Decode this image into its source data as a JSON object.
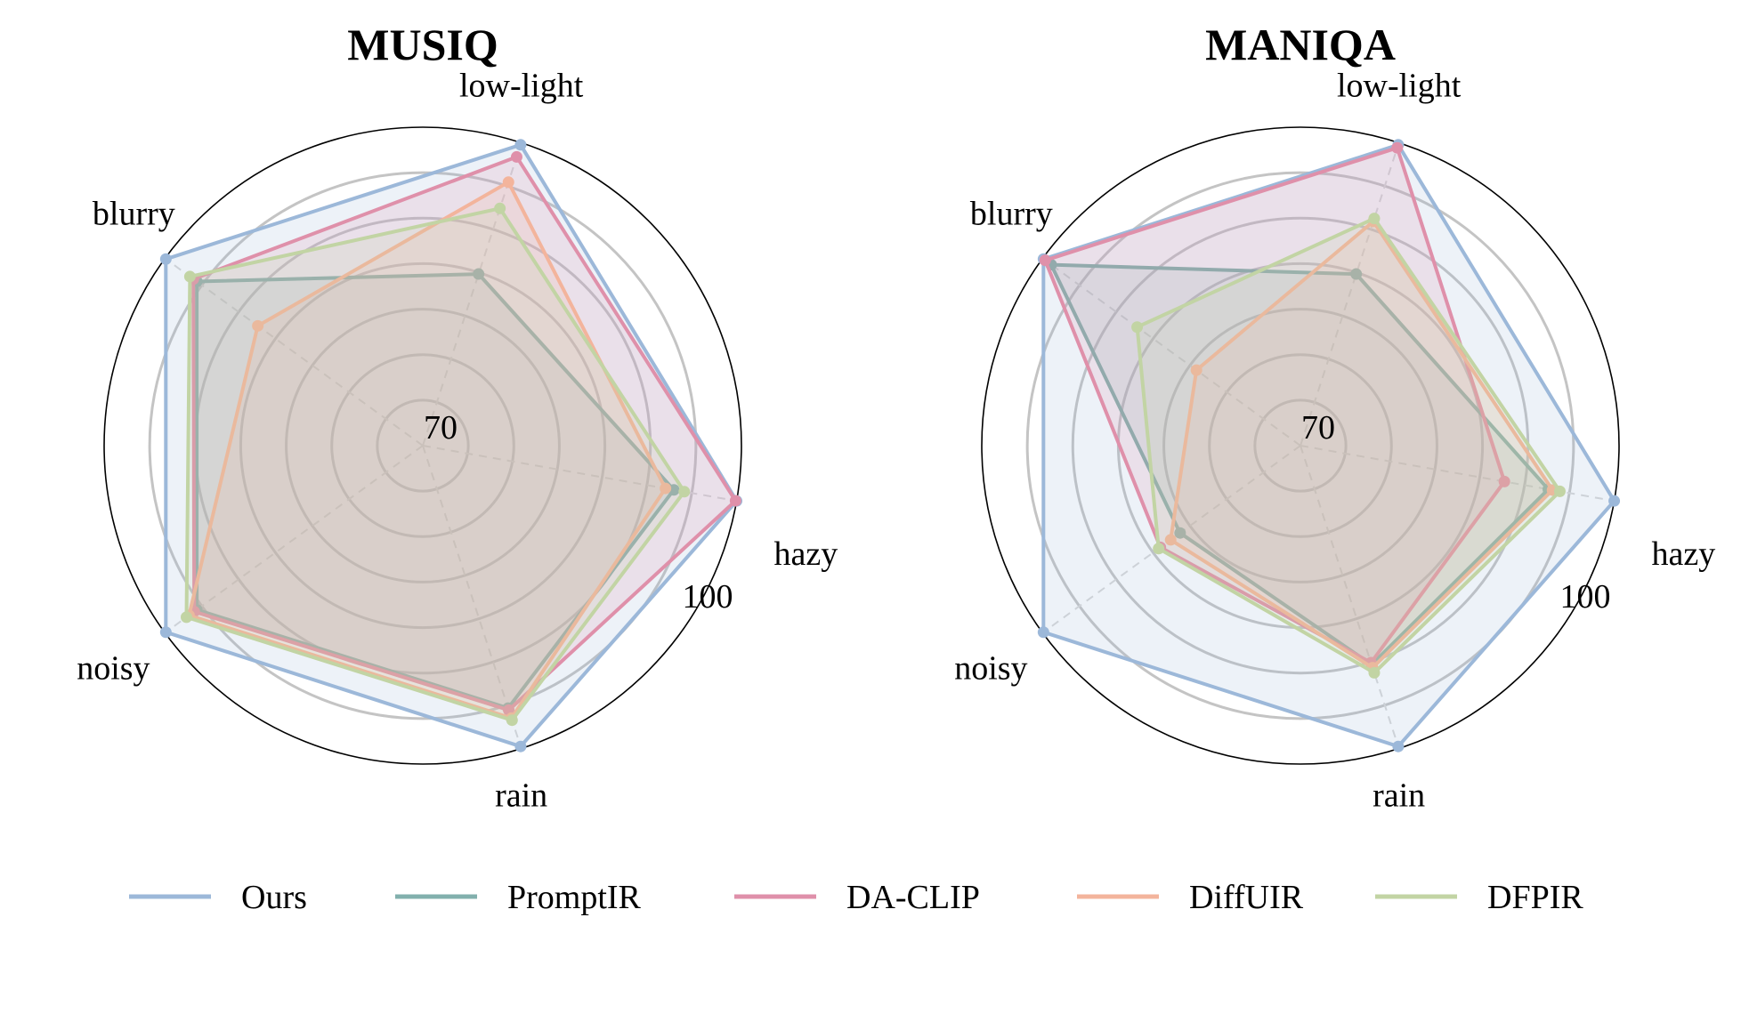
{
  "chart_data": [
    {
      "type": "radar",
      "title": "MUSIQ",
      "axes": [
        "hazy",
        "low-light",
        "blurry",
        "noisy",
        "rain"
      ],
      "range": [
        70,
        100
      ],
      "ring_count": 7,
      "tick_labels": [
        "70",
        "100"
      ],
      "grid": true,
      "series": [
        {
          "name": "Ours",
          "values": [
            100.0,
            99.8,
            99.9,
            99.9,
            99.8
          ]
        },
        {
          "name": "PromptIR",
          "values": [
            94.0,
            87.0,
            96.3,
            96.3,
            96.0
          ]
        },
        {
          "name": "DA-CLIP",
          "values": [
            99.9,
            98.6,
            96.7,
            96.6,
            96.2
          ]
        },
        {
          "name": "DiffUIR",
          "values": [
            93.2,
            96.1,
            89.2,
            97.2,
            97.0
          ]
        },
        {
          "name": "DFPIR",
          "values": [
            95.0,
            93.5,
            97.1,
            97.5,
            97.2
          ]
        }
      ]
    },
    {
      "type": "radar",
      "title": "MANIQA",
      "axes": [
        "hazy",
        "low-light",
        "blurry",
        "noisy",
        "rain"
      ],
      "range": [
        70,
        100
      ],
      "ring_count": 7,
      "tick_labels": [
        "70",
        "100"
      ],
      "grid": true,
      "series": [
        {
          "name": "Ours",
          "values": [
            100.0,
            99.8,
            99.9,
            99.9,
            99.8
          ]
        },
        {
          "name": "PromptIR",
          "values": [
            93.7,
            87.0,
            99.0,
            84.0,
            91.7
          ]
        },
        {
          "name": "DA-CLIP",
          "values": [
            89.5,
            99.5,
            99.7,
            86.3,
            91.5
          ]
        },
        {
          "name": "DiffUIR",
          "values": [
            94.1,
            92.2,
            82.1,
            85.1,
            92.0
          ]
        },
        {
          "name": "DFPIR",
          "values": [
            94.8,
            92.5,
            89.0,
            86.5,
            92.5
          ]
        }
      ]
    }
  ],
  "legend": {
    "placement": "bottom",
    "items": [
      {
        "name": "Ours",
        "color": "#9cb8d9"
      },
      {
        "name": "PromptIR",
        "color": "#82b0ad"
      },
      {
        "name": "DA-CLIP",
        "color": "#df90aa"
      },
      {
        "name": "DiffUIR",
        "color": "#f3b49c"
      },
      {
        "name": "DFPIR",
        "color": "#c2d4a4"
      }
    ]
  }
}
